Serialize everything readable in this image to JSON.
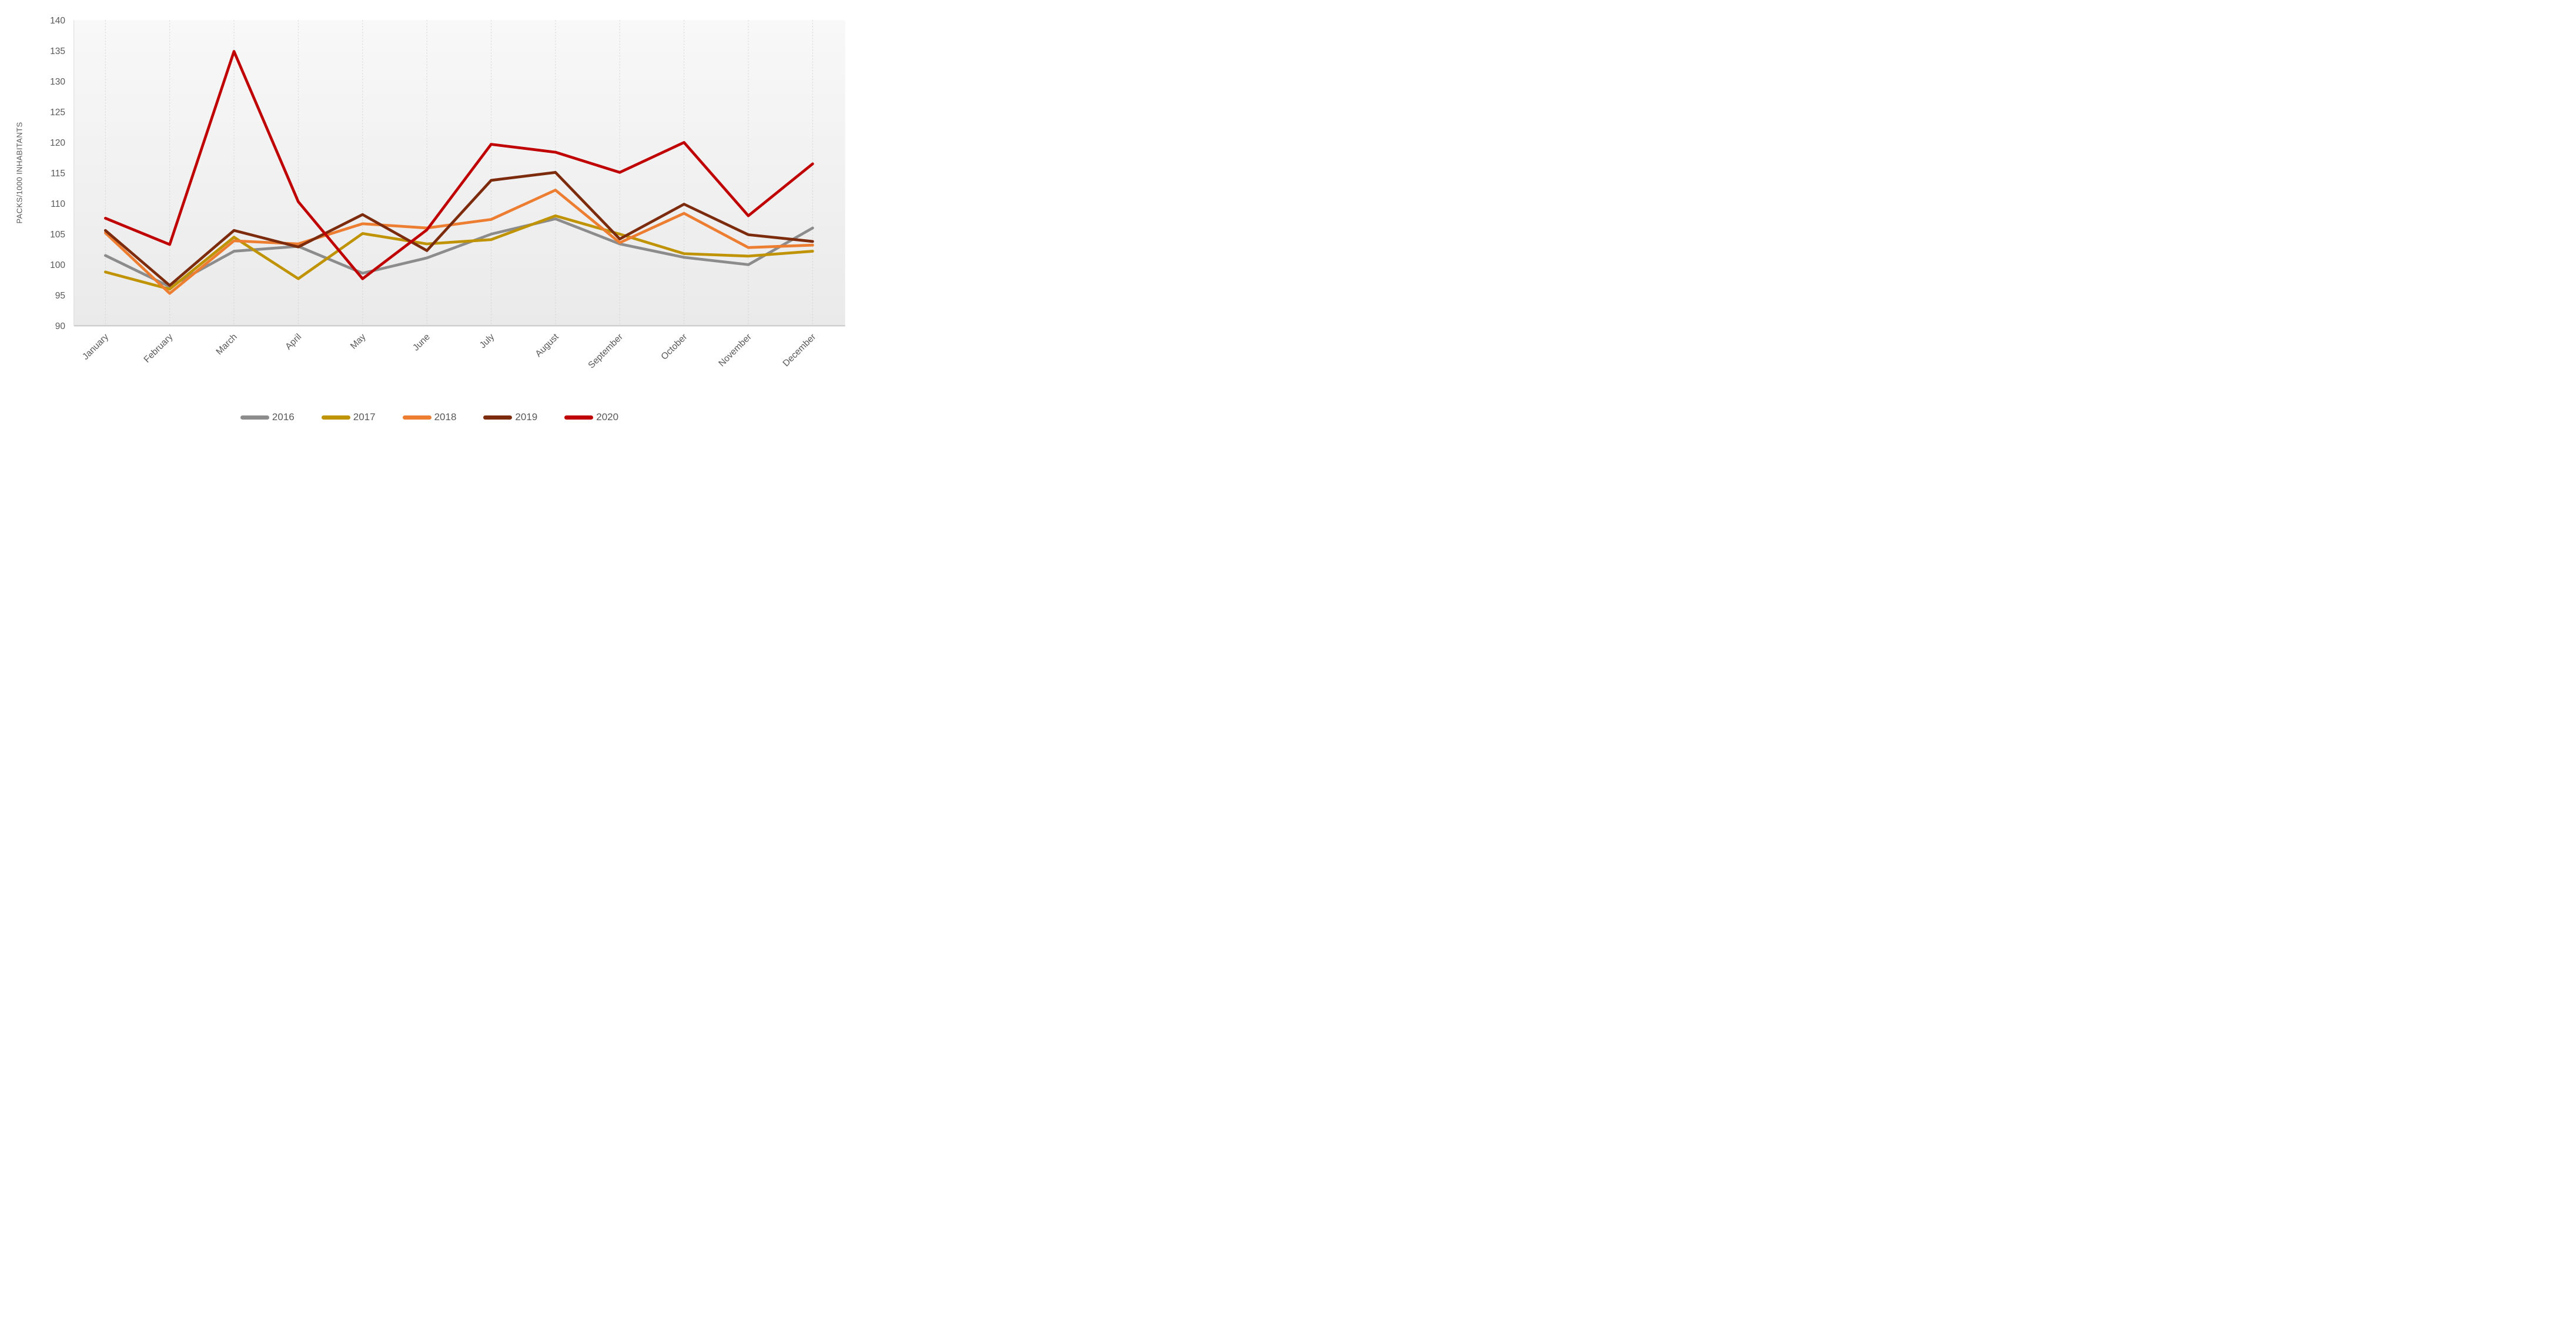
{
  "chart_data": {
    "type": "line",
    "title": "",
    "ylabel": "PACKS/1000 INHABITANTS",
    "xlabel": "",
    "ylim": [
      90,
      140
    ],
    "ytick_step": 5,
    "grid": "vertical-dashed-per-month",
    "legend_position": "bottom",
    "axis_text_color": "#595959",
    "gridline_color": "#D2D2D2",
    "plot_bg_top": "#F8F8F8",
    "plot_bg_bottom": "#EAEAEA",
    "categories": [
      "January",
      "February",
      "March",
      "April",
      "May",
      "June",
      "July",
      "August",
      "September",
      "October",
      "November",
      "December"
    ],
    "series": [
      {
        "name": "2016",
        "color": "#8C8C8C",
        "values": [
          101.5,
          96.4,
          102.2,
          103.0,
          98.6,
          101.1,
          105.0,
          107.5,
          103.4,
          101.2,
          100.0,
          106.0
        ]
      },
      {
        "name": "2017",
        "color": "#C09303",
        "values": [
          98.8,
          96.0,
          104.5,
          97.7,
          105.1,
          103.4,
          104.1,
          108.0,
          105.0,
          101.8,
          101.4,
          102.2
        ]
      },
      {
        "name": "2018",
        "color": "#ED7D31",
        "values": [
          105.2,
          95.3,
          103.9,
          103.4,
          106.7,
          106.0,
          107.4,
          112.2,
          103.6,
          108.4,
          102.8,
          103.2
        ]
      },
      {
        "name": "2019",
        "color": "#7D2B0D",
        "values": [
          105.6,
          96.6,
          105.6,
          102.9,
          108.2,
          102.3,
          113.8,
          115.1,
          104.2,
          109.9,
          104.9,
          103.8
        ]
      },
      {
        "name": "2020",
        "color": "#C00000",
        "values": [
          107.6,
          103.3,
          134.9,
          110.3,
          97.7,
          105.7,
          119.7,
          118.4,
          115.1,
          120.0,
          108.0,
          116.5
        ]
      }
    ]
  }
}
